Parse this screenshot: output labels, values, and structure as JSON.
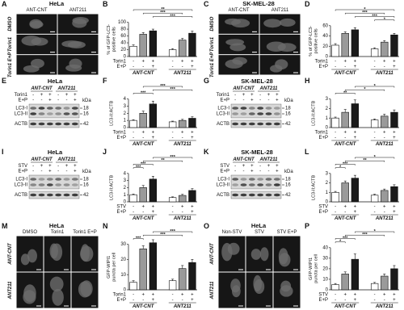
{
  "panels": [
    {
      "letter": "A",
      "kind": "micrograph",
      "title": "HeLa",
      "columns": [
        "ANT-CNT",
        "ANT211"
      ],
      "rows": [
        "DMSO",
        "Torin1",
        "Torin1 E+P"
      ]
    },
    {
      "letter": "B",
      "kind": "bar",
      "ylabel": [
        "% of GFP-LC3-",
        "positive cells"
      ],
      "ylim": [
        0,
        100
      ],
      "yticks": [
        0,
        20,
        40,
        60,
        80,
        100
      ],
      "colors": [
        "#ffffff",
        "#9a9a9a",
        "#1a1a1a"
      ],
      "values": [
        30,
        65,
        75,
        20,
        48,
        68
      ],
      "errors": [
        4,
        5,
        5,
        3,
        5,
        6
      ],
      "conditions": [
        {
          "name": "Torin1",
          "signs": [
            "-",
            "+",
            "+",
            "-",
            "+",
            "+"
          ]
        },
        {
          "name": "E+P",
          "signs": [
            "-",
            "-",
            "+",
            "-",
            "-",
            "+"
          ]
        }
      ],
      "groups": [
        "ANT-CNT",
        "ANT211"
      ],
      "brackets": [
        {
          "from": 0,
          "to": 5,
          "label": "**"
        },
        {
          "from": 1,
          "to": 4,
          "label": "***"
        },
        {
          "from": 2,
          "to": 5,
          "label": "***"
        }
      ]
    },
    {
      "letter": "C",
      "kind": "micrograph",
      "title": "SK-MEL-28",
      "columns": [
        "ANT-CNT",
        "ANT211"
      ],
      "rows": [
        "DMSO",
        "Torin1",
        "Torin1 E+P"
      ]
    },
    {
      "letter": "D",
      "kind": "bar",
      "ylabel": [
        "% of GFP-LC3-",
        "positive cells"
      ],
      "ylim": [
        0,
        60
      ],
      "yticks": [
        0,
        20,
        40,
        60
      ],
      "colors": [
        "#ffffff",
        "#9a9a9a",
        "#1a1a1a"
      ],
      "values": [
        22,
        45,
        52,
        15,
        28,
        42
      ],
      "errors": [
        3,
        3,
        4,
        2,
        3,
        3
      ],
      "conditions": [
        {
          "name": "Torin1",
          "signs": [
            "-",
            "+",
            "+",
            "-",
            "+",
            "+"
          ]
        },
        {
          "name": "E+P",
          "signs": [
            "-",
            "-",
            "+",
            "-",
            "-",
            "+"
          ]
        }
      ],
      "groups": [
        "ANT-CNT",
        "ANT211"
      ],
      "brackets": [
        {
          "from": 0,
          "to": 5,
          "label": "*"
        },
        {
          "from": 1,
          "to": 4,
          "label": "***"
        },
        {
          "from": 2,
          "to": 5,
          "label": "***"
        },
        {
          "from": 3,
          "to": 5,
          "label": "*"
        }
      ]
    },
    {
      "letter": "E",
      "kind": "blot",
      "title": "HeLa",
      "groups": [
        "ANT-CNT",
        "ANT211"
      ],
      "conditions": [
        {
          "name": "Torin1",
          "signs": [
            "-",
            "+",
            "+",
            "-",
            "+",
            "+"
          ]
        },
        {
          "name": "E+P",
          "signs": [
            "-",
            "-",
            "+",
            "-",
            "-",
            "+"
          ]
        }
      ],
      "kda_label": "kDa",
      "bands": [
        {
          "label": "LC3-I",
          "kda": "18"
        },
        {
          "label": "LC3-II",
          "kda": "16"
        },
        {
          "label": "ACTB",
          "kda": "42"
        }
      ]
    },
    {
      "letter": "F",
      "kind": "bar",
      "ylabel": [
        "LC3-II:ACTB"
      ],
      "ylim": [
        0,
        4
      ],
      "yticks": [
        0,
        1,
        2,
        3,
        4
      ],
      "colors": [
        "#ffffff",
        "#9a9a9a",
        "#1a1a1a"
      ],
      "values": [
        1,
        2,
        3.3,
        0.8,
        1,
        1.3
      ],
      "errors": [
        0.1,
        0.3,
        0.4,
        0.1,
        0.15,
        0.2
      ],
      "conditions": [
        {
          "name": "Torin1",
          "signs": [
            "-",
            "+",
            "+",
            "-",
            "+",
            "+"
          ]
        },
        {
          "name": "E+P",
          "signs": [
            "-",
            "-",
            "+",
            "-",
            "-",
            "+"
          ]
        }
      ],
      "groups": [
        "ANT-CNT",
        "ANT211"
      ],
      "brackets": [
        {
          "from": 1,
          "to": 4,
          "label": "***"
        },
        {
          "from": 2,
          "to": 5,
          "label": "***"
        },
        {
          "from": 0,
          "to": 2,
          "label": "***"
        }
      ]
    },
    {
      "letter": "G",
      "kind": "blot",
      "title": "SK-MEL-28",
      "groups": [
        "ANT-CNT",
        "ANT211"
      ],
      "conditions": [
        {
          "name": "Torin1",
          "signs": [
            "-",
            "+",
            "+",
            "-",
            "+",
            "+"
          ]
        },
        {
          "name": "E+P",
          "signs": [
            "-",
            "-",
            "+",
            "-",
            "-",
            "+"
          ]
        }
      ],
      "kda_label": "kDa",
      "bands": [
        {
          "label": "LC3-I",
          "kda": "18"
        },
        {
          "label": "LC3-II",
          "kda": "16"
        },
        {
          "label": "ACTB",
          "kda": "42"
        }
      ]
    },
    {
      "letter": "H",
      "kind": "bar",
      "ylabel": [
        "LC3-II:ACTB"
      ],
      "ylim": [
        0,
        3
      ],
      "yticks": [
        0,
        1,
        2,
        3
      ],
      "colors": [
        "#ffffff",
        "#9a9a9a",
        "#1a1a1a"
      ],
      "values": [
        1,
        1.6,
        2.5,
        0.8,
        1.2,
        1.6
      ],
      "errors": [
        0.1,
        0.3,
        0.4,
        0.1,
        0.2,
        0.25
      ],
      "conditions": [
        {
          "name": "Torin1",
          "signs": [
            "-",
            "+",
            "+",
            "-",
            "+",
            "+"
          ]
        },
        {
          "name": "E+P",
          "signs": [
            "-",
            "-",
            "+",
            "-",
            "-",
            "+"
          ]
        }
      ],
      "groups": [
        "ANT-CNT",
        "ANT211"
      ],
      "brackets": [
        {
          "from": 2,
          "to": 5,
          "label": "*"
        },
        {
          "from": 1,
          "to": 4,
          "label": "*"
        },
        {
          "from": 0,
          "to": 2,
          "label": "**"
        }
      ]
    },
    {
      "letter": "I",
      "kind": "blot",
      "title": "HeLa",
      "groups": [
        "ANT-CNT",
        "ANT211"
      ],
      "conditions": [
        {
          "name": "STV",
          "signs": [
            "-",
            "+",
            "+",
            "-",
            "+",
            "+"
          ]
        },
        {
          "name": "E+P",
          "signs": [
            "-",
            "-",
            "+",
            "-",
            "-",
            "+"
          ]
        }
      ],
      "kda_label": "kDa",
      "bands": [
        {
          "label": "LC3-I",
          "kda": "18"
        },
        {
          "label": "LC3-II",
          "kda": "16"
        },
        {
          "label": "ACTB",
          "kda": "42"
        }
      ]
    },
    {
      "letter": "J",
      "kind": "bar",
      "ylabel": [
        "LC3-II:ACTB"
      ],
      "ylim": [
        0,
        4
      ],
      "yticks": [
        0,
        1,
        2,
        3,
        4
      ],
      "colors": [
        "#ffffff",
        "#9a9a9a",
        "#1a1a1a"
      ],
      "values": [
        1,
        2,
        3.2,
        0.6,
        0.9,
        1.6
      ],
      "errors": [
        0.1,
        0.3,
        0.4,
        0.1,
        0.15,
        0.25
      ],
      "conditions": [
        {
          "name": "STV",
          "signs": [
            "-",
            "+",
            "+",
            "-",
            "+",
            "+"
          ]
        },
        {
          "name": "E+P",
          "signs": [
            "-",
            "-",
            "+",
            "-",
            "-",
            "+"
          ]
        }
      ],
      "groups": [
        "ANT-CNT",
        "ANT211"
      ],
      "brackets": [
        {
          "from": 2,
          "to": 5,
          "label": "***"
        },
        {
          "from": 1,
          "to": 4,
          "label": "**"
        },
        {
          "from": 0,
          "to": 2,
          "label": "***"
        },
        {
          "from": 0,
          "to": 1,
          "label": "***"
        }
      ]
    },
    {
      "letter": "K",
      "kind": "blot",
      "title": "SK-MEL-28",
      "groups": [
        "ANT-CNT",
        "ANT211"
      ],
      "conditions": [
        {
          "name": "STV",
          "signs": [
            "-",
            "+",
            "+",
            "-",
            "+",
            "+"
          ]
        },
        {
          "name": "E+P",
          "signs": [
            "-",
            "-",
            "+",
            "-",
            "-",
            "+"
          ]
        }
      ],
      "kda_label": "kDa",
      "bands": [
        {
          "label": "LC3-I",
          "kda": "18"
        },
        {
          "label": "LC3-II",
          "kda": "16"
        },
        {
          "label": "ACTB",
          "kda": "42"
        }
      ]
    },
    {
      "letter": "L",
      "kind": "bar",
      "ylabel": [
        "LC3-II:ACTB"
      ],
      "ylim": [
        0,
        3
      ],
      "yticks": [
        0,
        1,
        2,
        3
      ],
      "colors": [
        "#ffffff",
        "#9a9a9a",
        "#1a1a1a"
      ],
      "values": [
        1,
        2,
        2.5,
        0.7,
        1.2,
        1.6
      ],
      "errors": [
        0.1,
        0.2,
        0.3,
        0.1,
        0.15,
        0.2
      ],
      "conditions": [
        {
          "name": "STV",
          "signs": [
            "-",
            "+",
            "+",
            "-",
            "+",
            "+"
          ]
        },
        {
          "name": "E+P",
          "signs": [
            "-",
            "-",
            "+",
            "-",
            "-",
            "+"
          ]
        }
      ],
      "groups": [
        "ANT-CNT",
        "ANT211"
      ],
      "brackets": [
        {
          "from": 2,
          "to": 5,
          "label": "*"
        },
        {
          "from": 1,
          "to": 4,
          "label": "**"
        },
        {
          "from": 0,
          "to": 2,
          "label": "***"
        },
        {
          "from": 0,
          "to": 1,
          "label": "*"
        }
      ]
    },
    {
      "letter": "M",
      "kind": "micrograph",
      "title": "HeLa",
      "columns": [
        "DMSO",
        "Torin1",
        "Torin1 E+P"
      ],
      "rows": [
        "ANT-CNT",
        "ANT211"
      ]
    },
    {
      "letter": "N",
      "kind": "bar",
      "ylabel": [
        "GFP-WIPI1",
        "puncta per cell"
      ],
      "ylim": [
        0,
        30
      ],
      "yticks": [
        0,
        10,
        20,
        30
      ],
      "colors": [
        "#ffffff",
        "#9a9a9a",
        "#1a1a1a"
      ],
      "values": [
        5,
        27,
        31,
        6,
        14,
        18
      ],
      "errors": [
        1,
        2,
        2,
        1,
        2,
        2
      ],
      "conditions": [
        {
          "name": "Torin1",
          "signs": [
            "-",
            "+",
            "+",
            "-",
            "+",
            "+"
          ]
        },
        {
          "name": "E+P",
          "signs": [
            "-",
            "-",
            "+",
            "-",
            "-",
            "+"
          ]
        }
      ],
      "groups": [
        "ANT-CNT",
        "ANT211"
      ],
      "brackets": [
        {
          "from": 2,
          "to": 5,
          "label": "***"
        },
        {
          "from": 1,
          "to": 4,
          "label": "***"
        },
        {
          "from": 0,
          "to": 1,
          "label": "***"
        }
      ]
    },
    {
      "letter": "O",
      "kind": "micrograph",
      "title": "HeLa",
      "columns": [
        "Non-STV",
        "STV",
        "STV E+P"
      ],
      "rows": [
        "ANT-CNT",
        "ANT211"
      ]
    },
    {
      "letter": "P",
      "kind": "bar",
      "ylabel": [
        "GFP-WIPI1",
        "puncta per cell"
      ],
      "ylim": [
        0,
        40
      ],
      "yticks": [
        0,
        10,
        20,
        30,
        40
      ],
      "colors": [
        "#ffffff",
        "#9a9a9a",
        "#1a1a1a"
      ],
      "values": [
        5,
        15,
        29,
        6,
        13,
        20
      ],
      "errors": [
        1,
        2,
        5,
        1,
        2,
        3
      ],
      "conditions": [
        {
          "name": "STV",
          "signs": [
            "-",
            "+",
            "+",
            "-",
            "+",
            "+"
          ]
        },
        {
          "name": "E+P",
          "signs": [
            "-",
            "-",
            "+",
            "-",
            "-",
            "+"
          ]
        }
      ],
      "groups": [
        "ANT-CNT",
        "ANT211"
      ],
      "brackets": [
        {
          "from": 2,
          "to": 5,
          "label": "*"
        },
        {
          "from": 1,
          "to": 4,
          "label": "***"
        },
        {
          "from": 0,
          "to": 2,
          "label": "***"
        },
        {
          "from": 0,
          "to": 1,
          "label": "*"
        }
      ]
    }
  ]
}
